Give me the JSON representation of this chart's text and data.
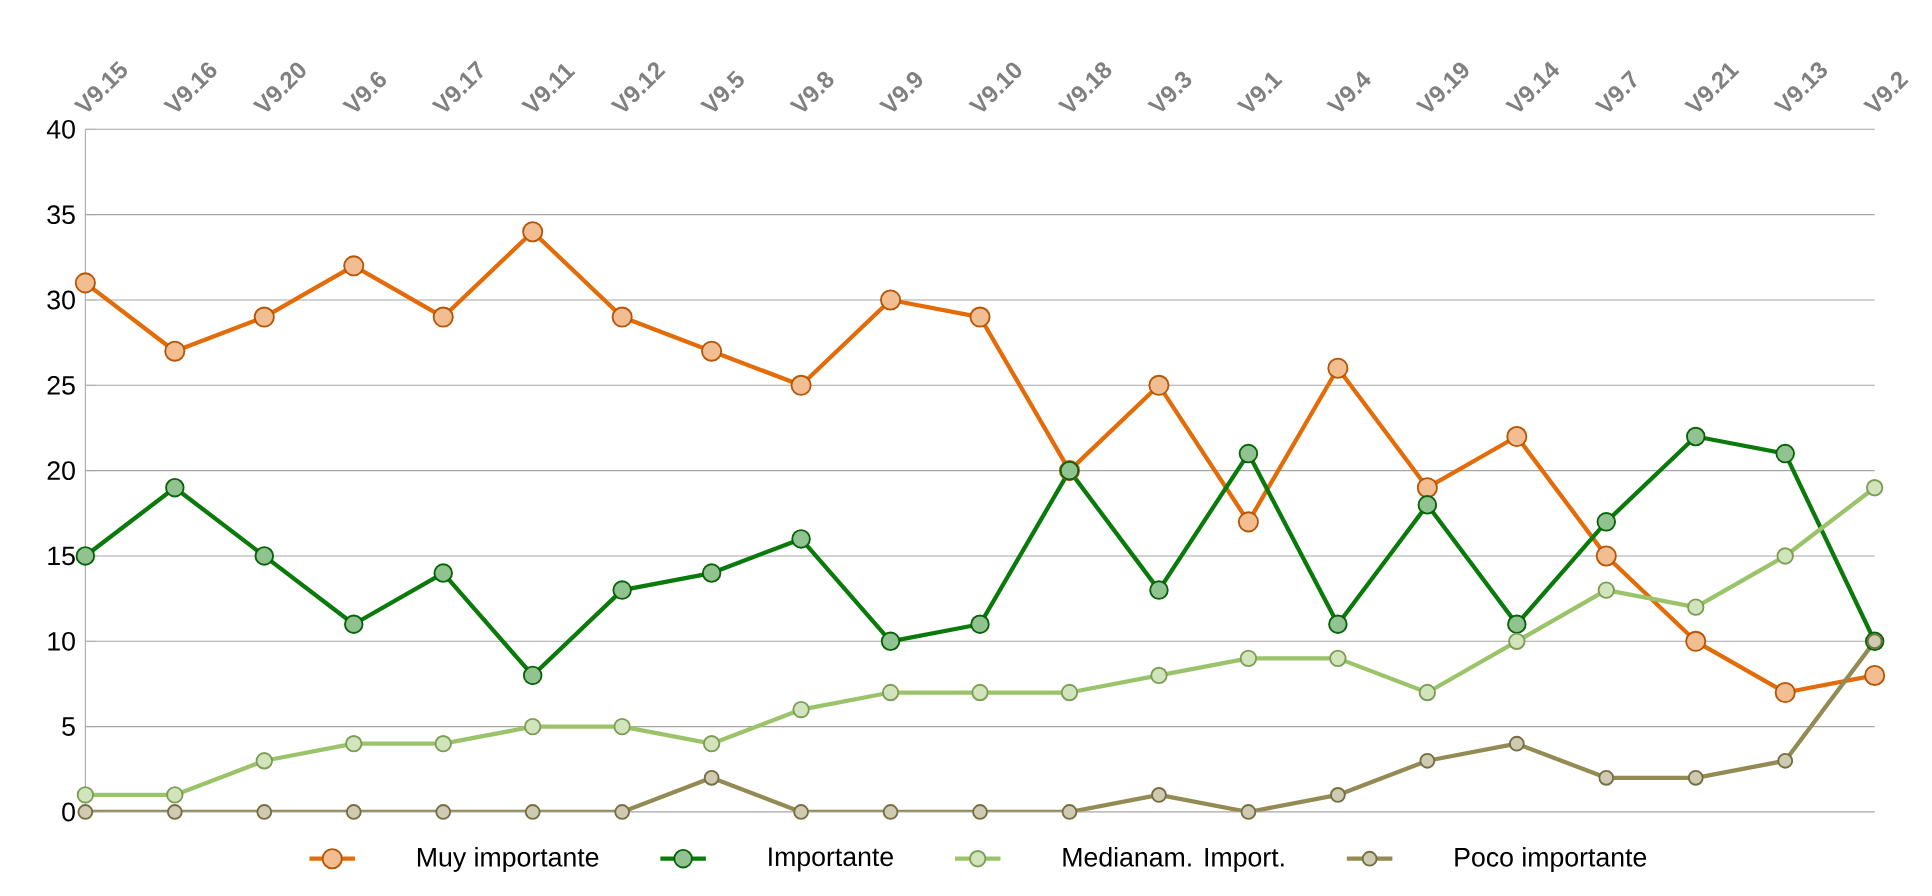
{
  "chart_data": {
    "type": "line",
    "categories": [
      "V9.15",
      "V9.16",
      "V9.20",
      "V9.6",
      "V9.17",
      "V9.11",
      "V9.12",
      "V9.5",
      "V9.8",
      "V9.9",
      "V9.10",
      "V9.18",
      "V9.3",
      "V9.1",
      "V9.4",
      "V9.19",
      "V9.14",
      "V9.7",
      "V9.21",
      "V9.13",
      "V9.2"
    ],
    "series": [
      {
        "name": "Muy importante",
        "color": "#e36c09",
        "values": [
          31,
          27,
          29,
          32,
          29,
          34,
          29,
          27,
          25,
          30,
          29,
          20,
          25,
          17,
          26,
          19,
          22,
          15,
          10,
          7,
          8
        ]
      },
      {
        "name": "Importante",
        "color": "#0a7a0a",
        "values": [
          15,
          19,
          15,
          11,
          14,
          8,
          13,
          14,
          16,
          10,
          11,
          20,
          13,
          21,
          11,
          18,
          11,
          17,
          22,
          21,
          10
        ]
      },
      {
        "name": "Medianam. Import.",
        "color": "#9bc46a",
        "values": [
          1,
          1,
          3,
          4,
          4,
          5,
          5,
          4,
          6,
          7,
          7,
          7,
          8,
          9,
          9,
          7,
          10,
          13,
          12,
          15,
          19
        ]
      },
      {
        "name": "Poco importante",
        "color": "#948a54",
        "values": [
          0,
          0,
          0,
          0,
          0,
          0,
          0,
          2,
          0,
          0,
          0,
          0,
          1,
          0,
          1,
          3,
          4,
          2,
          2,
          3,
          10
        ]
      }
    ],
    "ylim": [
      0,
      40
    ],
    "yticks": [
      0,
      5,
      10,
      15,
      20,
      25,
      30,
      35,
      40
    ],
    "grid": "y",
    "legend": "bottom",
    "marker": "circle",
    "line_style": "solid"
  }
}
